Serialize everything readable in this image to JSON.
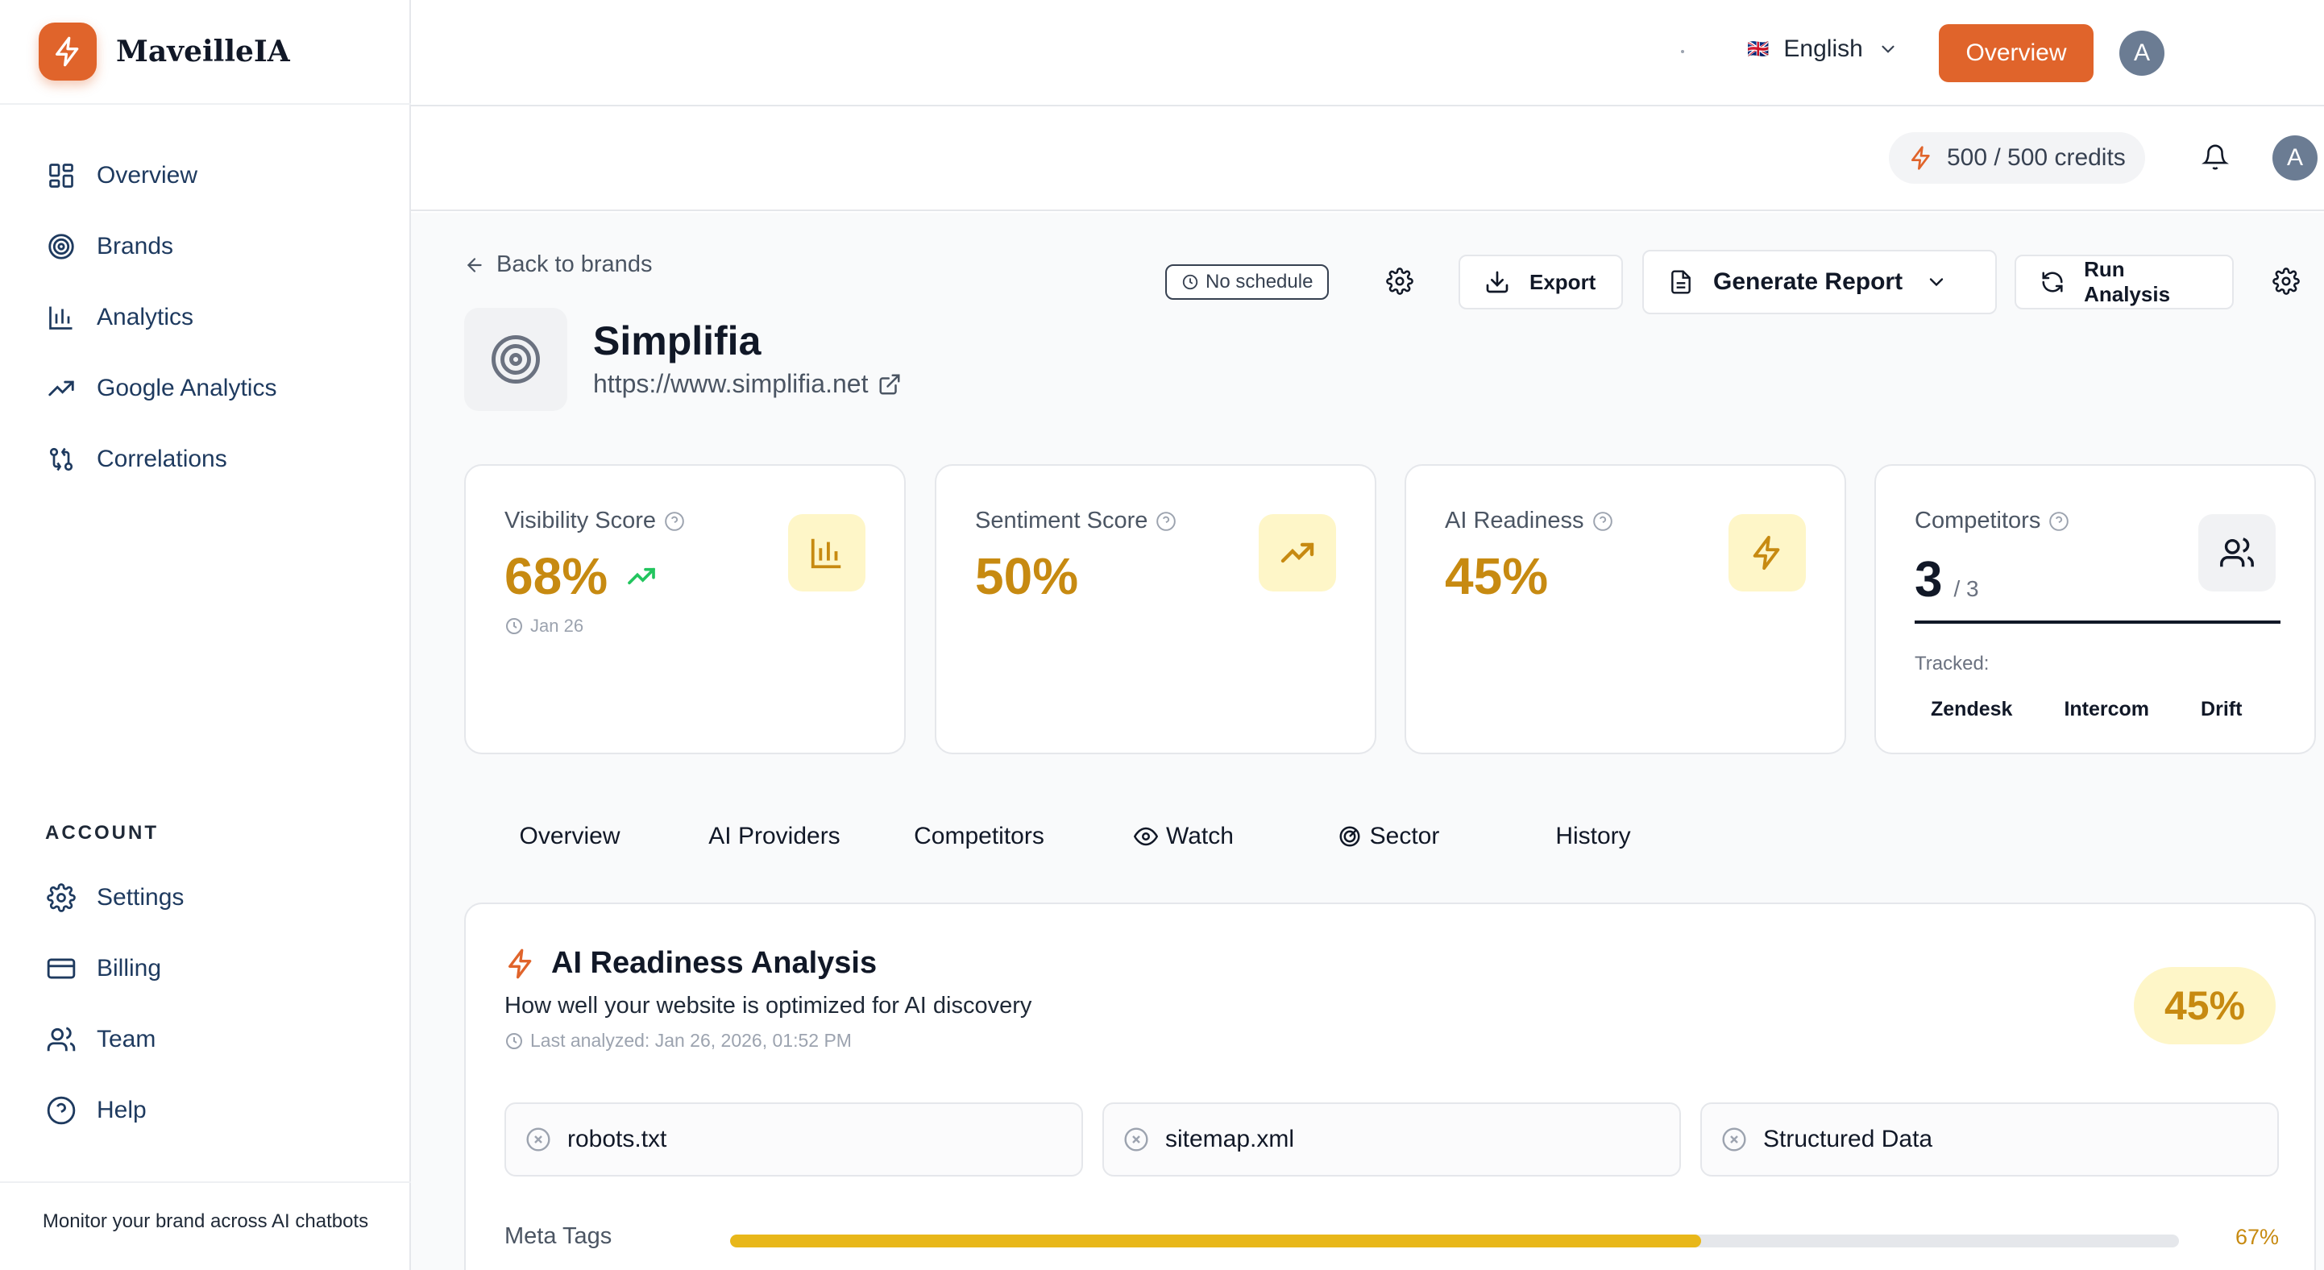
{
  "app": {
    "name": "MaveilleIA",
    "tagline": "Monitor your brand across AI chatbots",
    "accent_color": "#e0642b"
  },
  "sidebar": {
    "items": [
      {
        "label": "Overview",
        "icon": "layout-grid-icon"
      },
      {
        "label": "Brands",
        "icon": "target-icon"
      },
      {
        "label": "Analytics",
        "icon": "bar-chart-icon"
      },
      {
        "label": "Google Analytics",
        "icon": "trending-up-icon"
      },
      {
        "label": "Correlations",
        "icon": "git-compare-icon"
      }
    ],
    "account_label": "ACCOUNT",
    "account_items": [
      {
        "label": "Settings",
        "icon": "gear-icon"
      },
      {
        "label": "Billing",
        "icon": "credit-card-icon"
      },
      {
        "label": "Team",
        "icon": "users-icon"
      },
      {
        "label": "Help",
        "icon": "help-circle-icon"
      }
    ]
  },
  "topbar": {
    "language": "English",
    "flag": "🇬🇧",
    "overview_button": "Overview",
    "avatar_initial": "A",
    "credits": "500 / 500 credits"
  },
  "brand": {
    "back_label": "Back to brands",
    "name": "Simplifia",
    "url": "https://www.simplifia.net",
    "schedule": "No schedule",
    "export_label": "Export",
    "report_label": "Generate Report",
    "run_label": "Run Analysis"
  },
  "cards": {
    "visibility": {
      "title": "Visibility Score",
      "value": "68%",
      "date": "Jan 26"
    },
    "sentiment": {
      "title": "Sentiment Score",
      "value": "50%"
    },
    "readiness": {
      "title": "AI Readiness",
      "value": "45%"
    },
    "competitors": {
      "title": "Competitors",
      "count": "3",
      "total": "/ 3",
      "tracked_label": "Tracked:",
      "tracked": [
        "Zendesk",
        "Intercom",
        "Drift"
      ]
    }
  },
  "tabs": [
    "Overview",
    "AI Providers",
    "Competitors",
    "Watch",
    "Sector",
    "History"
  ],
  "analysis": {
    "title": "AI Readiness Analysis",
    "subtitle": "How well your website is optimized for AI discovery",
    "last_analyzed": "Last analyzed: Jan 26, 2026, 01:52 PM",
    "score": "45%",
    "checks": [
      "robots.txt",
      "sitemap.xml",
      "Structured Data"
    ],
    "meta_tags": {
      "label": "Meta Tags",
      "percent": "67%",
      "fraction": 0.67
    }
  }
}
